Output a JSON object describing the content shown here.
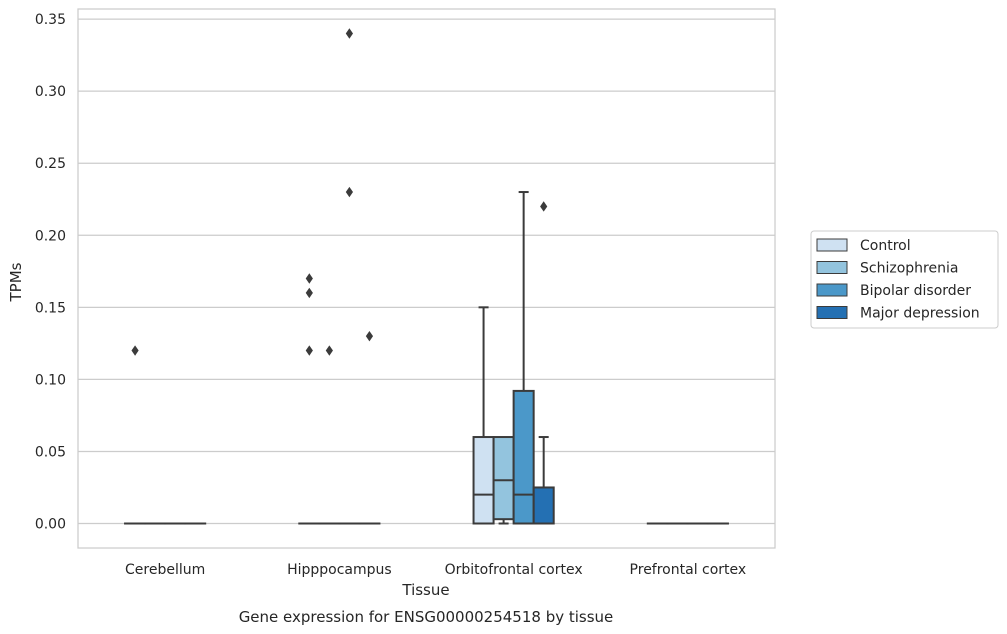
{
  "chart_data": {
    "type": "box",
    "title": "",
    "caption": "Gene expression for ENSG00000254518 by tissue",
    "xlabel": "Tissue",
    "ylabel": "TPMs",
    "ylim": [
      -0.017,
      0.357
    ],
    "yticks": [
      "0.00",
      "0.05",
      "0.10",
      "0.15",
      "0.20",
      "0.25",
      "0.30",
      "0.35"
    ],
    "categories": [
      "Cerebellum",
      "Hipppocampus",
      "Orbitofrontal cortex",
      "Prefrontal cortex"
    ],
    "grid": true,
    "legend_position": "right",
    "series": [
      {
        "name": "Control",
        "color": "#cfe1f2",
        "boxes": [
          {
            "category": "Cerebellum",
            "whislo": 0,
            "q1": 0,
            "med": 0,
            "q3": 0,
            "whishi": 0,
            "fliers": [
              0.12
            ]
          },
          {
            "category": "Hipppocampus",
            "whislo": 0,
            "q1": 0,
            "med": 0,
            "q3": 0,
            "whishi": 0,
            "fliers": [
              0.12,
              0.16,
              0.17
            ]
          },
          {
            "category": "Orbitofrontal cortex",
            "whislo": 0,
            "q1": 0,
            "med": 0.02,
            "q3": 0.06,
            "whishi": 0.15,
            "fliers": []
          },
          {
            "category": "Prefrontal cortex",
            "whislo": 0,
            "q1": 0,
            "med": 0,
            "q3": 0,
            "whishi": 0,
            "fliers": []
          }
        ]
      },
      {
        "name": "Schizophrenia",
        "color": "#93c4de",
        "boxes": [
          {
            "category": "Cerebellum",
            "whislo": 0,
            "q1": 0,
            "med": 0,
            "q3": 0,
            "whishi": 0,
            "fliers": []
          },
          {
            "category": "Hipppocampus",
            "whislo": 0,
            "q1": 0,
            "med": 0,
            "q3": 0,
            "whishi": 0,
            "fliers": [
              0.12
            ]
          },
          {
            "category": "Orbitofrontal cortex",
            "whislo": 0,
            "q1": 0.003,
            "med": 0.03,
            "q3": 0.06,
            "whishi": 0.06,
            "fliers": []
          },
          {
            "category": "Prefrontal cortex",
            "whislo": 0,
            "q1": 0,
            "med": 0,
            "q3": 0,
            "whishi": 0,
            "fliers": []
          }
        ]
      },
      {
        "name": "Bipolar disorder",
        "color": "#4b98c9",
        "boxes": [
          {
            "category": "Cerebellum",
            "whislo": 0,
            "q1": 0,
            "med": 0,
            "q3": 0,
            "whishi": 0,
            "fliers": []
          },
          {
            "category": "Hipppocampus",
            "whislo": 0,
            "q1": 0,
            "med": 0,
            "q3": 0,
            "whishi": 0,
            "fliers": [
              0.23,
              0.34
            ]
          },
          {
            "category": "Orbitofrontal cortex",
            "whislo": 0,
            "q1": 0,
            "med": 0.02,
            "q3": 0.092,
            "whishi": 0.23,
            "fliers": []
          },
          {
            "category": "Prefrontal cortex",
            "whislo": 0,
            "q1": 0,
            "med": 0,
            "q3": 0,
            "whishi": 0,
            "fliers": []
          }
        ]
      },
      {
        "name": "Major depression",
        "color": "#2470b3",
        "boxes": [
          {
            "category": "Cerebellum",
            "whislo": 0,
            "q1": 0,
            "med": 0,
            "q3": 0,
            "whishi": 0,
            "fliers": []
          },
          {
            "category": "Hipppocampus",
            "whislo": 0,
            "q1": 0,
            "med": 0,
            "q3": 0,
            "whishi": 0,
            "fliers": [
              0.13
            ]
          },
          {
            "category": "Orbitofrontal cortex",
            "whislo": 0,
            "q1": 0,
            "med": 0,
            "q3": 0.025,
            "whishi": 0.06,
            "fliers": [
              0.22
            ]
          },
          {
            "category": "Prefrontal cortex",
            "whislo": 0,
            "q1": 0,
            "med": 0,
            "q3": 0,
            "whishi": 0,
            "fliers": []
          }
        ]
      }
    ]
  }
}
